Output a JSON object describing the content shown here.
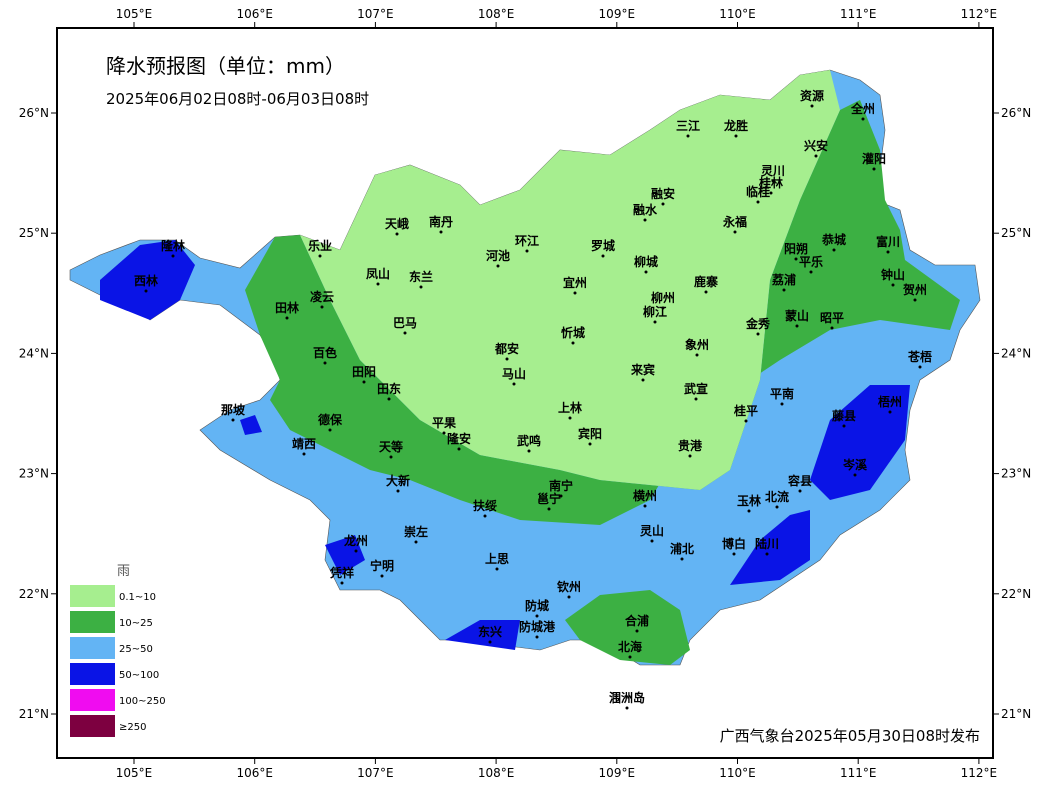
{
  "header": {
    "title": "降水预报图（单位：mm）",
    "subtitle": "2025年06月02日08时-06月03日08时"
  },
  "axes": {
    "lon_ticks": [
      "105°E",
      "106°E",
      "107°E",
      "108°E",
      "109°E",
      "110°E",
      "111°E",
      "112°E"
    ],
    "lat_ticks": [
      "26°N",
      "25°N",
      "24°N",
      "23°N",
      "22°N",
      "21°N"
    ]
  },
  "cities": [
    "三江",
    "龙胜",
    "资源",
    "全州",
    "兴安",
    "灌阳",
    "灵川",
    "桂林",
    "临桂",
    "融安",
    "融水",
    "永福",
    "天峨",
    "南丹",
    "环江",
    "罗城",
    "阳朔",
    "恭城",
    "富川",
    "乐业",
    "河池",
    "柳城",
    "平乐",
    "钟山",
    "凤山",
    "东兰",
    "宜州",
    "鹿寨",
    "荔浦",
    "贺州",
    "田林",
    "凌云",
    "柳州",
    "柳江",
    "蒙山",
    "昭平",
    "巴马",
    "金秀",
    "忻城",
    "都安",
    "象州",
    "百色",
    "苍梧",
    "马山",
    "来宾",
    "田阳",
    "田东",
    "武宣",
    "平南",
    "藤县",
    "梧州",
    "岑溪",
    "那坡",
    "德保",
    "上林",
    "桂平",
    "平果",
    "靖西",
    "隆安",
    "天等",
    "武鸣",
    "宾阳",
    "贵港",
    "大新",
    "南宁",
    "邕宁",
    "横州",
    "容县",
    "北流",
    "玉林",
    "扶绥",
    "崇左",
    "灵山",
    "龙州",
    "博白",
    "陆川",
    "上思",
    "浦北",
    "凭祥",
    "宁明",
    "钦州",
    "防城",
    "防城港",
    "东兴",
    "合浦",
    "北海",
    "涠洲岛",
    "西林",
    "隆林"
  ],
  "legend": {
    "title": "雨",
    "items": [
      "0.1~10",
      "10~25",
      "25~50",
      "50~100",
      "100~250",
      "≥250"
    ]
  },
  "footer": "广西气象台2025年05月30日08时发布"
}
